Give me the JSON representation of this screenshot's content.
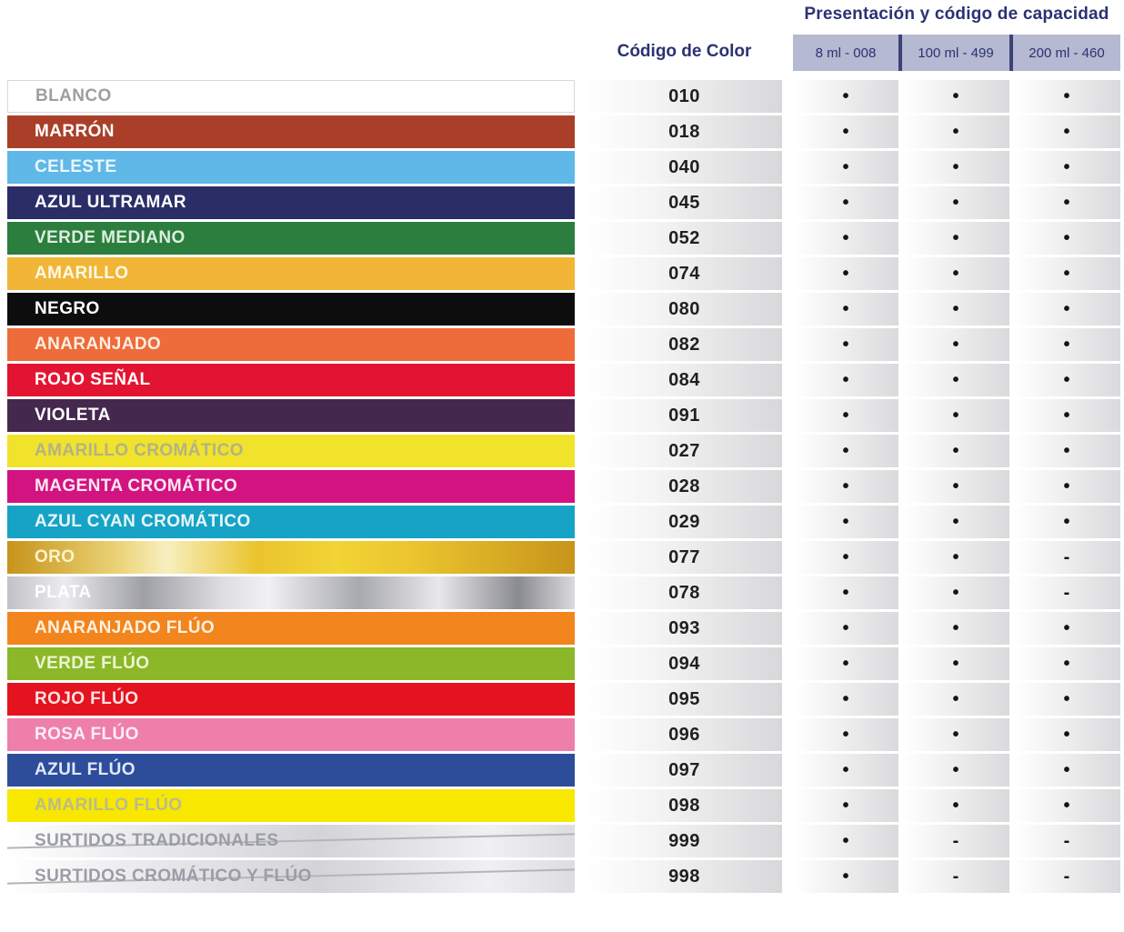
{
  "header": {
    "capacity_title": "Presentación y código de capacidad",
    "code_title": "Código de Color",
    "capacity_columns": [
      "8 ml - 008",
      "100 ml - 499",
      "200 ml - 460"
    ]
  },
  "theme": {
    "header_bg": "#b5b9d1",
    "header_text": "#2b3272",
    "divider": "#3c4277",
    "cell_gradient_start": "#ffffff",
    "cell_gradient_end": "#d8d8da",
    "dot_char": "•",
    "dash_char": "-"
  },
  "rows": [
    {
      "name": "BLANCO",
      "code": "010",
      "bg": "#ffffff",
      "text": "#9e9e9e",
      "border": "#d8d8d8",
      "style": "plain",
      "availability": [
        "•",
        "•",
        "•"
      ]
    },
    {
      "name": "MARRÓN",
      "code": "018",
      "bg": "#a93f28",
      "text": "#ffffff",
      "style": "plain",
      "availability": [
        "•",
        "•",
        "•"
      ]
    },
    {
      "name": "CELESTE",
      "code": "040",
      "bg": "#60b8e8",
      "text": "#eaf7fd",
      "style": "plain",
      "availability": [
        "•",
        "•",
        "•"
      ]
    },
    {
      "name": "AZUL ULTRAMAR",
      "code": "045",
      "bg": "#2b2d67",
      "text": "#ffffff",
      "style": "plain",
      "availability": [
        "•",
        "•",
        "•"
      ]
    },
    {
      "name": "VERDE MEDIANO",
      "code": "052",
      "bg": "#2b7e3e",
      "text": "#dceede",
      "style": "plain",
      "availability": [
        "•",
        "•",
        "•"
      ]
    },
    {
      "name": "AMARILLO",
      "code": "074",
      "bg": "#f1b637",
      "text": "#fdf8e8",
      "style": "plain",
      "availability": [
        "•",
        "•",
        "•"
      ]
    },
    {
      "name": "NEGRO",
      "code": "080",
      "bg": "#0d0d0d",
      "text": "#ffffff",
      "style": "plain",
      "availability": [
        "•",
        "•",
        "•"
      ]
    },
    {
      "name": "ANARANJADO",
      "code": "082",
      "bg": "#ee6b3a",
      "text": "#fdeee2",
      "style": "plain",
      "availability": [
        "•",
        "•",
        "•"
      ]
    },
    {
      "name": "ROJO SEÑAL",
      "code": "084",
      "bg": "#e31431",
      "text": "#ffffff",
      "style": "plain",
      "availability": [
        "•",
        "•",
        "•"
      ]
    },
    {
      "name": "VIOLETA",
      "code": "091",
      "bg": "#45284e",
      "text": "#ffffff",
      "style": "plain",
      "availability": [
        "•",
        "•",
        "•"
      ]
    },
    {
      "name": "AMARILLO CROMÁTICO",
      "code": "027",
      "bg": "#f1e32b",
      "text": "#b2b289",
      "style": "plain",
      "availability": [
        "•",
        "•",
        "•"
      ]
    },
    {
      "name": "MAGENTA CROMÁTICO",
      "code": "028",
      "bg": "#d31380",
      "text": "#fce8f2",
      "style": "plain",
      "availability": [
        "•",
        "•",
        "•"
      ]
    },
    {
      "name": "AZUL CYAN CROMÁTICO",
      "code": "029",
      "bg": "#17a3c6",
      "text": "#e6f6fa",
      "style": "plain",
      "availability": [
        "•",
        "•",
        "•"
      ]
    },
    {
      "name": "ORO",
      "code": "077",
      "bg": "linear-gradient(90deg,#c7941a 0%,#ecd47a 20%,#f7efc0 28%,#eac42e 44%,#f2d435 58%,#eac42e 72%,#c7941a 100%)",
      "text": "#faf3cd",
      "style": "plain",
      "availability": [
        "•",
        "•",
        "-"
      ]
    },
    {
      "name": "PLATA",
      "code": "078",
      "bg": "linear-gradient(90deg,#c2c2c6 0%,#ececee 10%,#9fa0a6 24%,#dedee1 38%,#f1f1f3 46%,#a8a9af 62%,#e8e8ea 76%,#8a8b91 90%,#dadadd 100%)",
      "text": "#ffffff",
      "style": "plain",
      "availability": [
        "•",
        "•",
        "-"
      ]
    },
    {
      "name": "ANARANJADO FLÚO",
      "code": "093",
      "bg": "#f2851d",
      "text": "#fdf1e2",
      "style": "plain",
      "availability": [
        "•",
        "•",
        "•"
      ]
    },
    {
      "name": "VERDE FLÚO",
      "code": "094",
      "bg": "#8cb728",
      "text": "#ecf6d2",
      "style": "plain",
      "availability": [
        "•",
        "•",
        "•"
      ]
    },
    {
      "name": "ROJO FLÚO",
      "code": "095",
      "bg": "#e3131f",
      "text": "#fce2e4",
      "style": "plain",
      "availability": [
        "•",
        "•",
        "•"
      ]
    },
    {
      "name": "ROSA FLÚO",
      "code": "096",
      "bg": "#ee7fab",
      "text": "#fdeef5",
      "style": "plain",
      "availability": [
        "•",
        "•",
        "•"
      ]
    },
    {
      "name": "AZUL FLÚO",
      "code": "097",
      "bg": "#2d4d9b",
      "text": "#dfe8f7",
      "style": "plain",
      "availability": [
        "•",
        "•",
        "•"
      ]
    },
    {
      "name": "AMARILLO FLÚO",
      "code": "098",
      "bg": "#f8e800",
      "text": "#b9bc8a",
      "style": "plain",
      "availability": [
        "•",
        "•",
        "•"
      ]
    },
    {
      "name": "SURTIDOS TRADICIONALES",
      "code": "999",
      "bg": "linear-gradient(90deg,#ffffff 0%,#e9e9ec 25%,#d4d4d8 55%,#f0f0f2 85%,#dddde1 100%)",
      "text": "#9b9da6",
      "style": "assorted",
      "availability": [
        "•",
        "-",
        "-"
      ]
    },
    {
      "name": "SURTIDOS CROMÁTICO Y FLÚO",
      "code": "998",
      "bg": "linear-gradient(90deg,#ffffff 0%,#e9e9ec 25%,#d4d4d8 55%,#f0f0f2 85%,#dddde1 100%)",
      "text": "#9b9da6",
      "style": "assorted",
      "availability": [
        "•",
        "-",
        "-"
      ]
    }
  ]
}
